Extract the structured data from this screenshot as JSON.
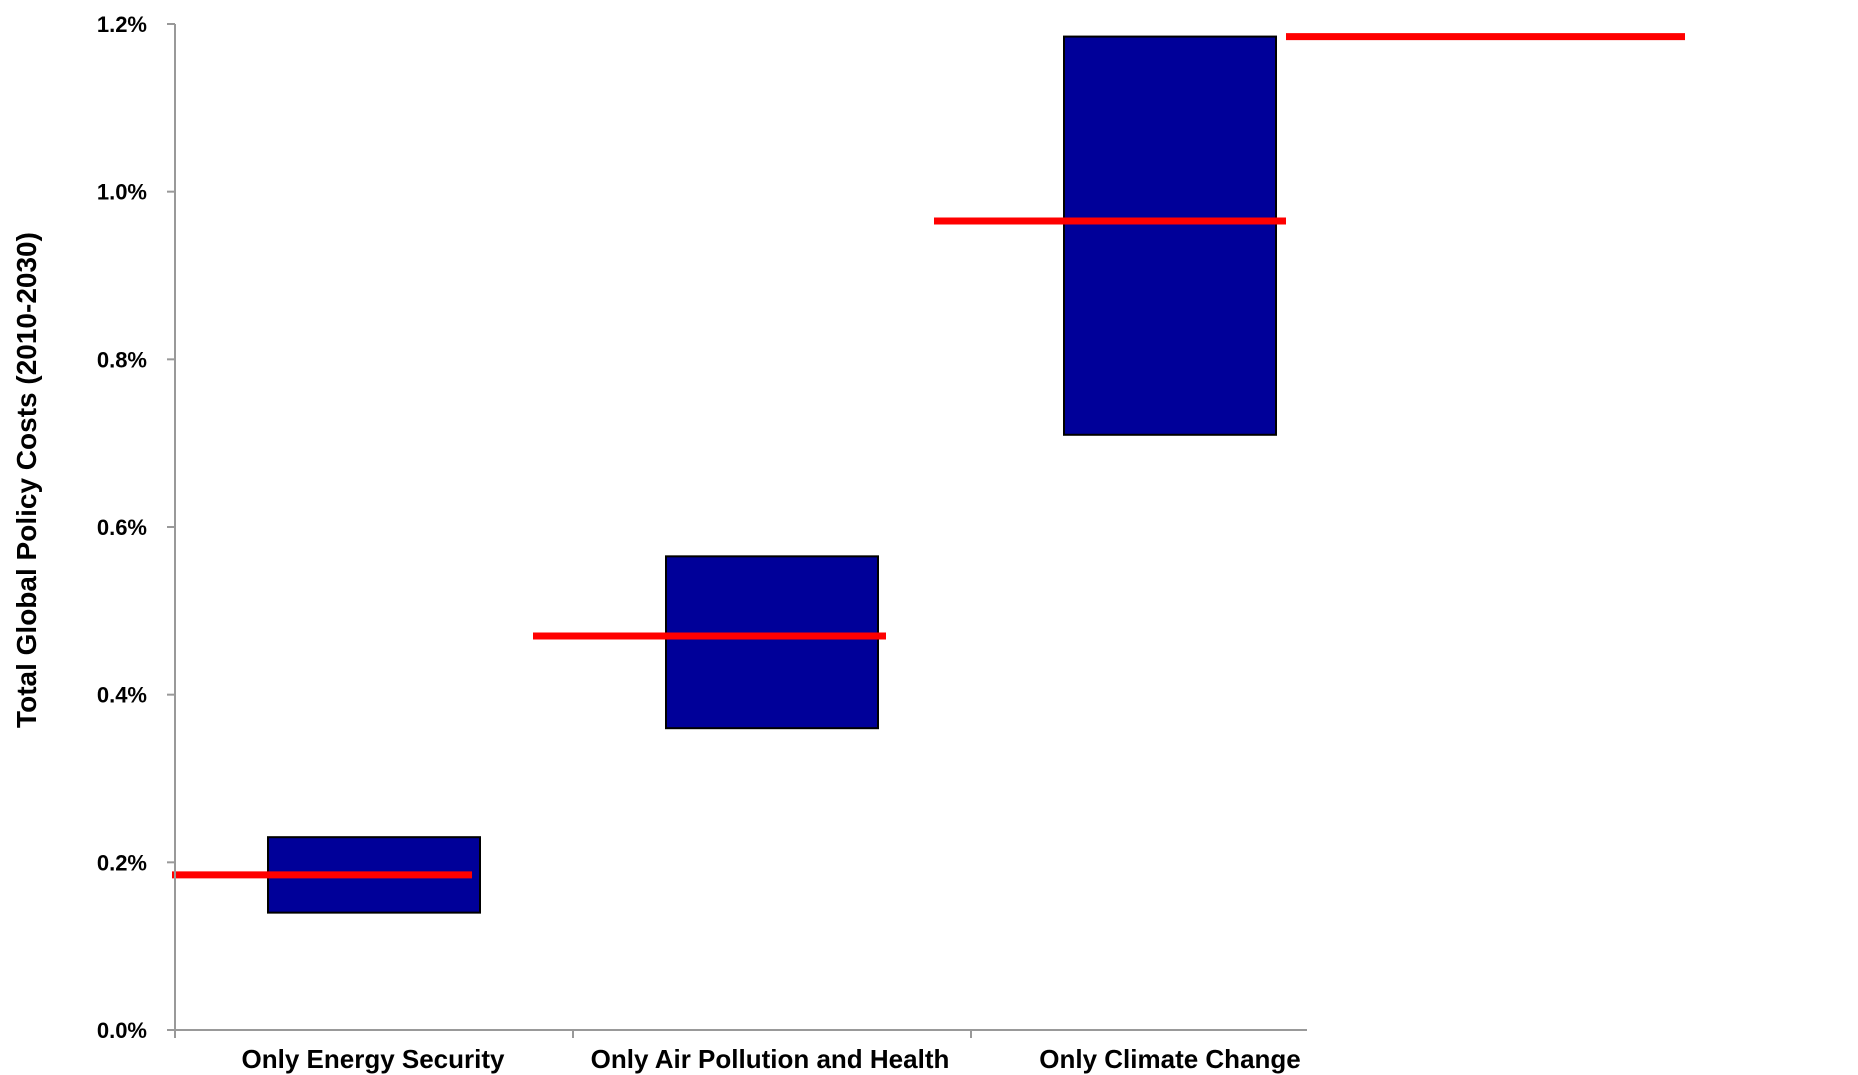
{
  "chart_data": {
    "type": "bar",
    "title": "",
    "xlabel": "",
    "ylabel": "Total Global Policy Costs (2010-2030)",
    "ylim": [
      0,
      1.2
    ],
    "yticks": [
      "0.0%",
      "0.2%",
      "0.4%",
      "0.6%",
      "0.8%",
      "1.0%",
      "1.2%"
    ],
    "ytick_values": [
      0,
      0.2,
      0.4,
      0.6,
      0.8,
      1.0,
      1.2
    ],
    "categories": [
      "Only Energy Security",
      "Only Air Pollution and Health",
      "Only Climate Change",
      ""
    ],
    "ranges": [
      {
        "low": 0.14,
        "high": 0.23
      },
      {
        "low": 0.36,
        "high": 0.565
      },
      {
        "low": 0.71,
        "high": 1.185
      },
      null
    ],
    "markers": [
      {
        "from_slot": 0,
        "to_slot": 0,
        "value": 0.185
      },
      {
        "from_slot": 1,
        "to_slot": 1,
        "value": 0.47
      },
      {
        "from_slot": 2,
        "to_slot": 2,
        "value": 0.965
      },
      {
        "from_slot": 3,
        "to_slot": 3,
        "value": 1.185
      }
    ],
    "grid": false,
    "legend": "none",
    "colors": {
      "range": "#000099",
      "marker": "#ff0000",
      "axis": "#999999"
    }
  }
}
